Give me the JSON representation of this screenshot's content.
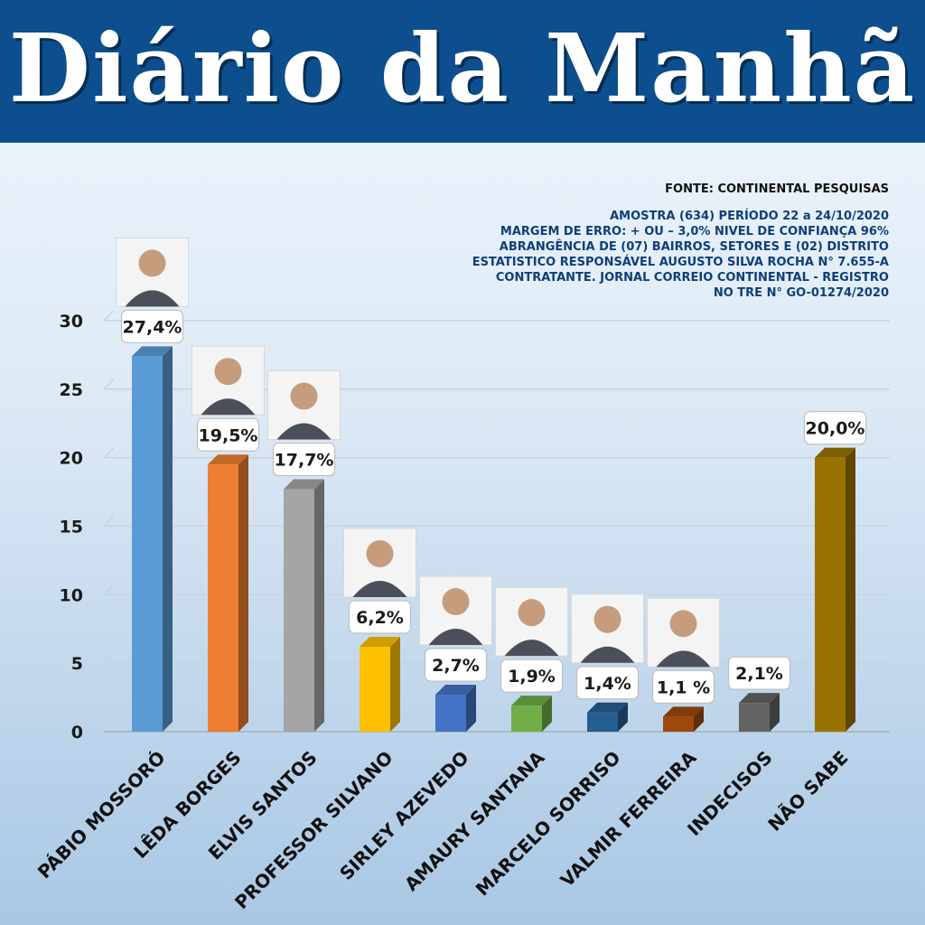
{
  "header": {
    "title": "Diário da Manhã"
  },
  "info": {
    "source": "FONTE: CONTINENTAL PESQUISAS",
    "lines": [
      "AMOSTRA (634) PERÍODO 22 a 24/10/2020",
      "MARGEM DE ERRO: + OU – 3,0% NIVEL DE CONFIANÇA 96%",
      "ABRANGÊNCIA DE (07) BAIRROS, SETORES E (02) DISTRITO",
      "ESTATISTICO RESPONSÁVEL AUGUSTO SILVA ROCHA N° 7.655-A",
      "CONTRATANTE. JORNAL CORREIO CONTINENTAL - REGISTRO",
      "NO TRE N° GO-01274/2020"
    ]
  },
  "chart_data": {
    "type": "bar",
    "title": "",
    "xlabel": "",
    "ylabel": "",
    "ylim": [
      0,
      30
    ],
    "yticks": [
      0,
      5,
      10,
      15,
      20,
      25,
      30
    ],
    "grid": true,
    "categories": [
      "PÁBIO MOSSORÓ",
      "LÊDA BORGES",
      "ELVIS SANTOS",
      "PROFESSOR SILVANO",
      "SIRLEY AZEVEDO",
      "AMAURY SANTANA",
      "MARCELO SORRISO",
      "VALMIR FERREIRA",
      "INDECISOS",
      "NÃO SABE"
    ],
    "values": [
      27.4,
      19.5,
      17.7,
      6.2,
      2.7,
      1.9,
      1.4,
      1.1,
      2.1,
      20.0
    ],
    "value_labels": [
      "27,4%",
      "19,5%",
      "17,7%",
      "6,2%",
      "2,7%",
      "1,9%",
      "1,4%",
      "1,1 %",
      "2,1%",
      "20,0%"
    ],
    "colors": [
      "#5b9bd5",
      "#ed7d31",
      "#a5a5a5",
      "#ffc000",
      "#4472c4",
      "#70ad47",
      "#255e91",
      "#9e480e",
      "#636363",
      "#997300"
    ],
    "photos": [
      true,
      true,
      true,
      true,
      true,
      true,
      true,
      true,
      false,
      false
    ],
    "photo_icon": "candidate-portrait-icon"
  }
}
